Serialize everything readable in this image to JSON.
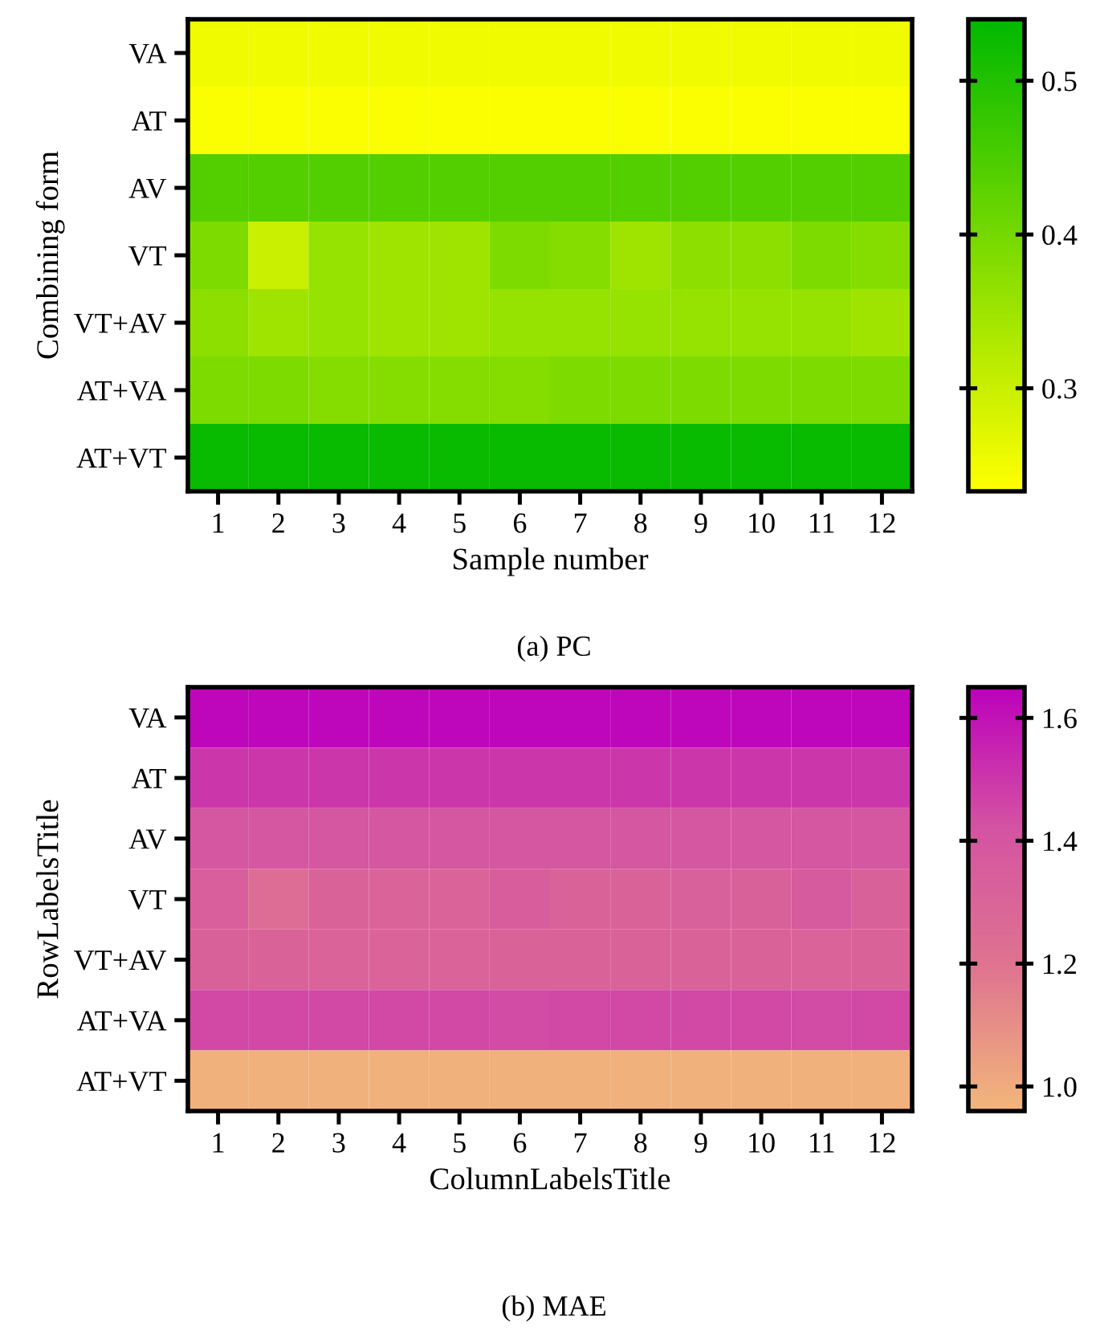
{
  "chart_data": [
    {
      "type": "heatmap",
      "xlabel": "Sample number",
      "ylabel": "Combining form",
      "annotations": [
        "(a) PC"
      ],
      "categories": [
        "1",
        "2",
        "3",
        "4",
        "5",
        "6",
        "7",
        "8",
        "9",
        "10",
        "11",
        "12"
      ],
      "y_categories": [
        "VA",
        "AT",
        "AV",
        "VT",
        "VT+AV",
        "AT+VA",
        "AT+VT"
      ],
      "cells": [
        [
          0.25,
          0.25,
          0.25,
          0.25,
          0.25,
          0.25,
          0.25,
          0.25,
          0.25,
          0.25,
          0.25,
          0.25
        ],
        [
          0.24,
          0.24,
          0.24,
          0.24,
          0.24,
          0.24,
          0.24,
          0.24,
          0.24,
          0.24,
          0.24,
          0.24
        ],
        [
          0.44,
          0.44,
          0.44,
          0.44,
          0.44,
          0.44,
          0.44,
          0.44,
          0.44,
          0.44,
          0.44,
          0.44
        ],
        [
          0.39,
          0.3,
          0.36,
          0.35,
          0.35,
          0.39,
          0.38,
          0.35,
          0.37,
          0.37,
          0.39,
          0.38
        ],
        [
          0.37,
          0.35,
          0.36,
          0.35,
          0.35,
          0.36,
          0.36,
          0.36,
          0.36,
          0.36,
          0.36,
          0.35
        ],
        [
          0.39,
          0.39,
          0.38,
          0.38,
          0.38,
          0.38,
          0.39,
          0.39,
          0.39,
          0.39,
          0.39,
          0.39
        ],
        [
          0.53,
          0.53,
          0.53,
          0.53,
          0.53,
          0.53,
          0.53,
          0.53,
          0.53,
          0.53,
          0.53,
          0.53
        ]
      ],
      "clim": [
        0.233,
        0.54
      ],
      "cticks": [
        0.3,
        0.4,
        0.5
      ],
      "colors": [
        "#ffff00",
        "#00b800"
      ]
    },
    {
      "type": "heatmap",
      "xlabel": "ColumnLabelsTitle",
      "ylabel": "RowLabelsTitle",
      "annotations": [
        "(b) MAE"
      ],
      "categories": [
        "1",
        "2",
        "3",
        "4",
        "5",
        "6",
        "7",
        "8",
        "9",
        "10",
        "11",
        "12"
      ],
      "y_categories": [
        "VA",
        "AT",
        "AV",
        "VT",
        "VT+AV",
        "AT+VA",
        "AT+VT"
      ],
      "cells": [
        [
          1.63,
          1.63,
          1.63,
          1.63,
          1.63,
          1.63,
          1.63,
          1.63,
          1.63,
          1.63,
          1.63,
          1.63
        ],
        [
          1.5,
          1.5,
          1.5,
          1.5,
          1.5,
          1.5,
          1.5,
          1.5,
          1.5,
          1.5,
          1.5,
          1.5
        ],
        [
          1.4,
          1.4,
          1.4,
          1.4,
          1.4,
          1.4,
          1.4,
          1.4,
          1.4,
          1.4,
          1.4,
          1.4
        ],
        [
          1.34,
          1.24,
          1.31,
          1.3,
          1.3,
          1.35,
          1.31,
          1.31,
          1.33,
          1.32,
          1.37,
          1.32
        ],
        [
          1.32,
          1.31,
          1.3,
          1.3,
          1.3,
          1.31,
          1.31,
          1.31,
          1.31,
          1.31,
          1.3,
          1.31
        ],
        [
          1.45,
          1.45,
          1.45,
          1.45,
          1.45,
          1.44,
          1.45,
          1.45,
          1.45,
          1.45,
          1.44,
          1.45
        ],
        [
          0.98,
          0.98,
          0.98,
          0.98,
          0.98,
          0.98,
          0.98,
          0.98,
          0.98,
          0.98,
          0.98,
          0.98
        ]
      ],
      "clim": [
        0.96,
        1.65
      ],
      "cticks": [
        {
          "value": 1,
          "label": "1.0"
        },
        {
          "value": 1.2,
          "label": "1.2"
        },
        {
          "value": 1.4,
          "label": "1.4"
        },
        {
          "value": 1.6,
          "label": "1.6"
        }
      ],
      "colors": [
        "#f2b67a",
        "#df7490",
        "#d453a2",
        "#bc00bc"
      ]
    }
  ]
}
